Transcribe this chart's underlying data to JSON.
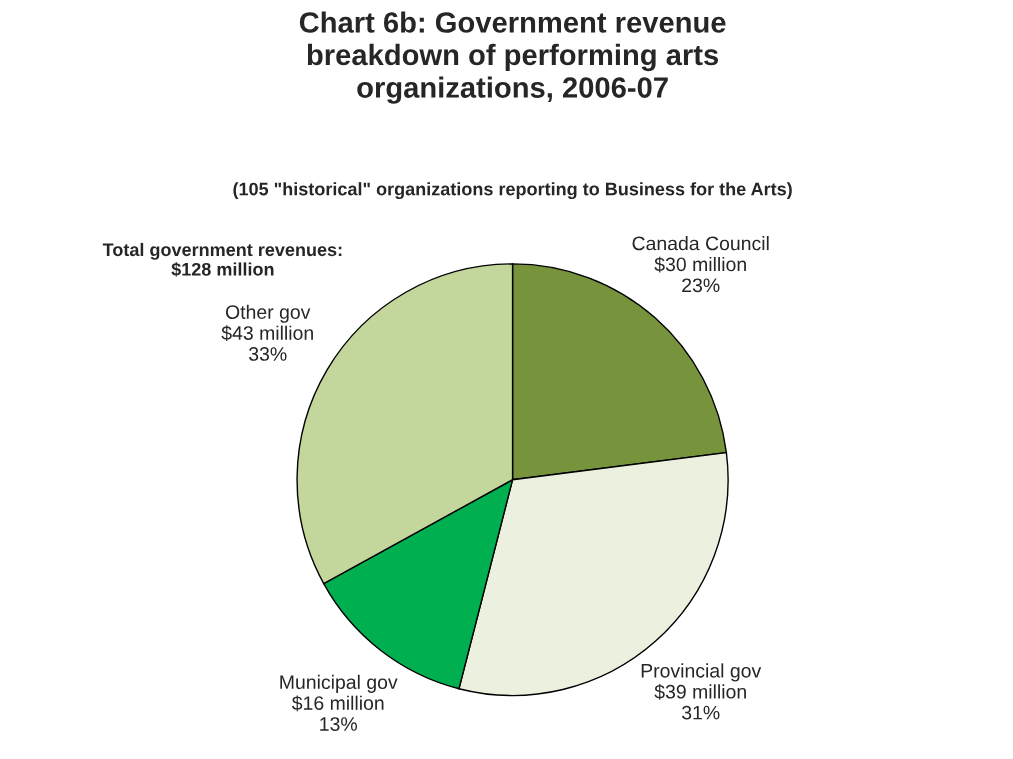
{
  "chart_data": {
    "type": "pie",
    "title": "Chart 6b: Government revenue\nbreakdown of performing arts\norganizations, 2006-07",
    "subtitle": "(105 \"historical\" organizations reporting to Business for the Arts)",
    "annotations": [
      "Total government revenues:\n$128 million"
    ],
    "categories": [
      "Canada Council",
      "Provincial gov",
      "Municipal gov",
      "Other gov"
    ],
    "values": [
      23,
      31,
      13,
      33
    ],
    "value_labels": [
      "$30 million\n23%",
      "$39 million\n31%",
      "$16 million\n13%",
      "$43 million\n33%"
    ],
    "colors": [
      "#77933c",
      "#ebf1de",
      "#00b050",
      "#c3d69b"
    ],
    "legend": false
  }
}
